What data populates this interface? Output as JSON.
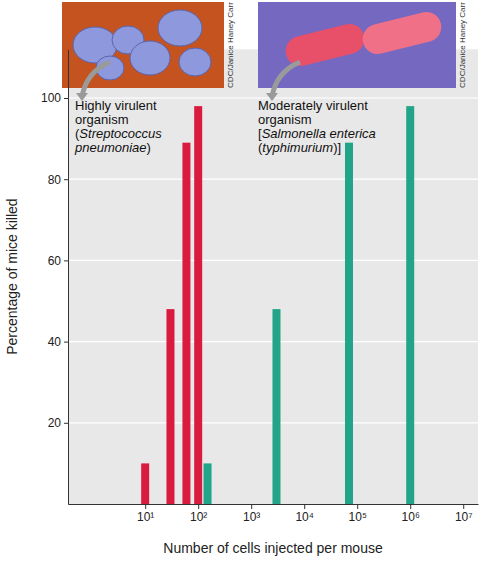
{
  "chart_data": {
    "type": "bar",
    "x_label": "Number of cells injected per mouse",
    "y_label": "Percentage of mice killed",
    "log": "x",
    "grid": true,
    "xlim": [
      0.35,
      19000000
    ],
    "ylim": [
      0,
      112
    ],
    "xticks": [
      {
        "value": 10,
        "label": "10¹"
      },
      {
        "value": 100,
        "label": "10²"
      },
      {
        "value": 1000,
        "label": "10³"
      },
      {
        "value": 10000,
        "label": "10⁴"
      },
      {
        "value": 100000,
        "label": "10⁵"
      },
      {
        "value": 1000000,
        "label": "10⁶"
      },
      {
        "value": 10000000,
        "label": "10⁷"
      }
    ],
    "yticks": [
      20,
      40,
      60,
      80,
      100
    ],
    "series": [
      {
        "name": "Highly virulent organism (Streptococcus pneumoniae)",
        "color": "#d81b3f",
        "x": [
          10,
          30,
          60,
          100
        ],
        "values": [
          10,
          48,
          89,
          98
        ]
      },
      {
        "name": "Moderately virulent organism [Salmonella enterica (typhimurium)]",
        "color": "#21a487",
        "x": [
          150,
          3000,
          70000,
          1000000
        ],
        "values": [
          10,
          48,
          89,
          98
        ]
      }
    ],
    "image_credits": [
      "CDC/Janice Haney Carr",
      "CDC/Janice Haney Carr"
    ]
  }
}
